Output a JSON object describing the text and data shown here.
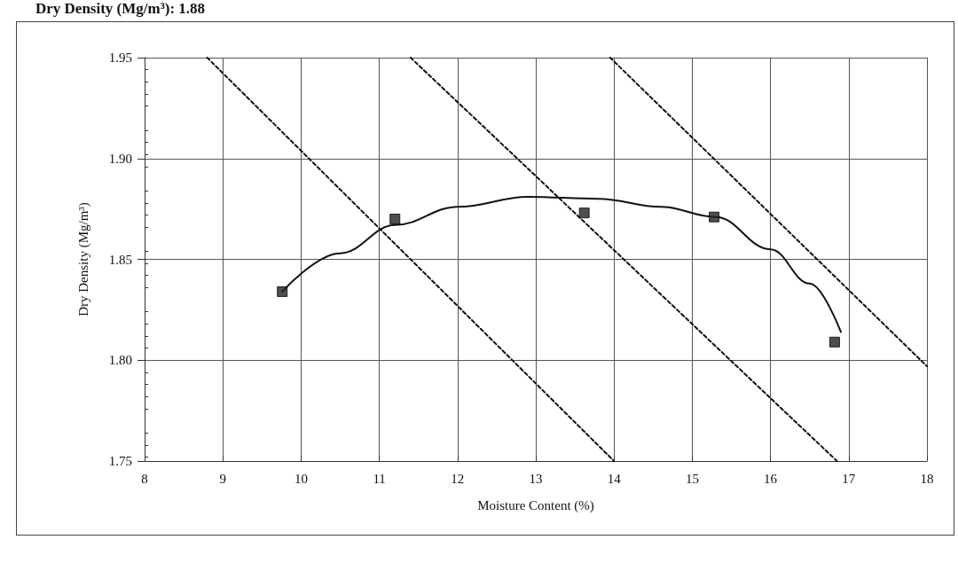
{
  "chart_data": {
    "type": "scatter",
    "title": "Dry Density (Mg/m³): 1.88",
    "xlabel": "Moisture Content (%)",
    "ylabel": "Dry Density (Mg/m³)",
    "xlim": [
      8,
      18
    ],
    "xticks": [
      8,
      9,
      10,
      11,
      12,
      13,
      14,
      15,
      16,
      17,
      18
    ],
    "ylim": [
      1.75,
      1.95
    ],
    "yticks": [
      1.75,
      {
        "value": 1.8,
        "label": "1.80"
      },
      1.85,
      {
        "value": 1.9,
        "label": "1.90"
      },
      1.95
    ],
    "grid": true,
    "series": [
      {
        "marker": "square",
        "color": "#222222",
        "x": [
          9.76,
          11.2,
          13.62,
          15.28,
          16.82
        ],
        "values": [
          1.834,
          1.87,
          1.873,
          1.871,
          1.809
        ]
      },
      {
        "type": "line",
        "marker": "none",
        "line_style": "solid",
        "color": "#111111",
        "x": [
          9.76,
          10.5,
          11.2,
          12,
          12.9,
          13.8,
          14.6,
          15.3,
          16,
          16.5,
          16.9
        ],
        "values": [
          1.834,
          1.853,
          1.867,
          1.876,
          1.881,
          1.88,
          1.876,
          1.871,
          1.855,
          1.838,
          1.814
        ]
      },
      {
        "type": "line",
        "marker": "none",
        "line_style": "dashed",
        "color": "#111111",
        "x": [
          8.8,
          14
        ],
        "values": [
          1.95,
          1.75
        ]
      },
      {
        "type": "line",
        "marker": "none",
        "line_style": "dashed",
        "color": "#111111",
        "x": [
          11.4,
          16.85
        ],
        "values": [
          1.95,
          1.75
        ]
      },
      {
        "type": "line",
        "marker": "none",
        "line_style": "dashed",
        "color": "#111111",
        "x": [
          13.95,
          18
        ],
        "values": [
          1.95,
          1.797
        ]
      }
    ]
  }
}
